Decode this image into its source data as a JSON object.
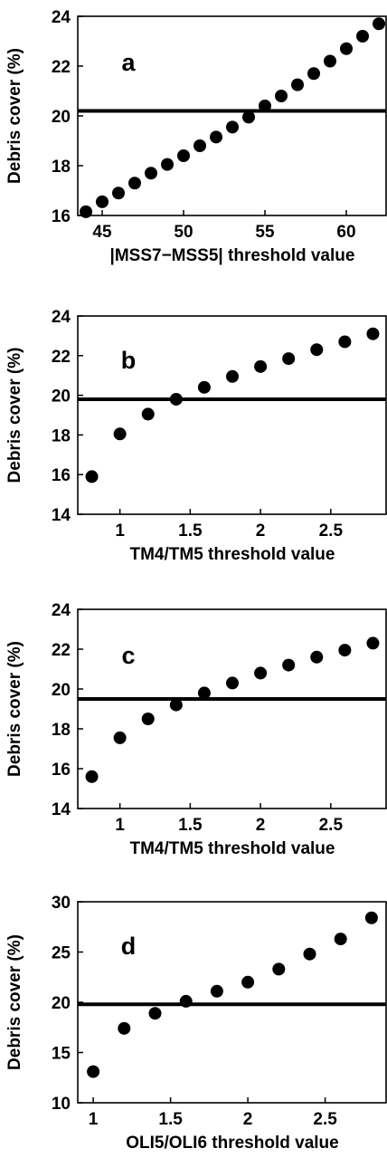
{
  "chart_data": [
    {
      "type": "scatter",
      "panel_label": "a",
      "xlabel": "|MSS7−MSS5| threshold value",
      "ylabel": "Debris cover (%)",
      "xlim": [
        43.5,
        62.5
      ],
      "ylim": [
        16,
        24
      ],
      "xticks": [
        45,
        50,
        55,
        60
      ],
      "yticks": [
        16,
        18,
        20,
        22,
        24
      ],
      "reference_line_y": 20.2,
      "x": [
        44,
        45,
        46,
        47,
        48,
        49,
        50,
        51,
        52,
        53,
        54,
        55,
        56,
        57,
        58,
        59,
        60,
        61,
        62
      ],
      "y": [
        16.15,
        16.55,
        16.9,
        17.3,
        17.7,
        18.05,
        18.4,
        18.8,
        19.15,
        19.55,
        19.95,
        20.4,
        20.8,
        21.25,
        21.7,
        22.2,
        22.7,
        23.2,
        23.7
      ],
      "grid": false
    },
    {
      "type": "scatter",
      "panel_label": "b",
      "xlabel": "TM4/TM5 threshold value",
      "ylabel": "Debris cover (%)",
      "xlim": [
        0.7,
        2.9
      ],
      "ylim": [
        14,
        24
      ],
      "xticks": [
        1,
        1.5,
        2,
        2.5
      ],
      "yticks": [
        14,
        16,
        18,
        20,
        22,
        24
      ],
      "reference_line_y": 19.8,
      "x": [
        0.8,
        1.0,
        1.2,
        1.4,
        1.6,
        1.8,
        2.0,
        2.2,
        2.4,
        2.6,
        2.8
      ],
      "y": [
        15.9,
        18.05,
        19.05,
        19.8,
        20.4,
        20.95,
        21.45,
        21.85,
        22.3,
        22.7,
        23.1
      ],
      "grid": false
    },
    {
      "type": "scatter",
      "panel_label": "c",
      "xlabel": "TM4/TM5 threshold value",
      "ylabel": "Debris cover (%)",
      "xlim": [
        0.7,
        2.9
      ],
      "ylim": [
        14,
        24
      ],
      "xticks": [
        1,
        1.5,
        2,
        2.5
      ],
      "yticks": [
        14,
        16,
        18,
        20,
        22,
        24
      ],
      "reference_line_y": 19.5,
      "x": [
        0.8,
        1.0,
        1.2,
        1.4,
        1.6,
        1.8,
        2.0,
        2.2,
        2.4,
        2.6,
        2.8
      ],
      "y": [
        15.6,
        17.55,
        18.5,
        19.2,
        19.8,
        20.3,
        20.8,
        21.2,
        21.6,
        21.95,
        22.3
      ],
      "grid": false
    },
    {
      "type": "scatter",
      "panel_label": "d",
      "xlabel": "OLI5/OLI6 threshold value",
      "ylabel": "Debris cover (%)",
      "xlim": [
        0.9,
        2.9
      ],
      "ylim": [
        10,
        30
      ],
      "xticks": [
        1,
        1.5,
        2,
        2.5
      ],
      "yticks": [
        10,
        15,
        20,
        25,
        30
      ],
      "reference_line_y": 19.8,
      "x": [
        1.0,
        1.2,
        1.4,
        1.6,
        1.8,
        2.0,
        2.2,
        2.4,
        2.6,
        2.8
      ],
      "y": [
        13.1,
        17.4,
        18.9,
        20.1,
        21.1,
        22.0,
        23.3,
        24.8,
        26.3,
        28.4
      ],
      "grid": false
    }
  ]
}
